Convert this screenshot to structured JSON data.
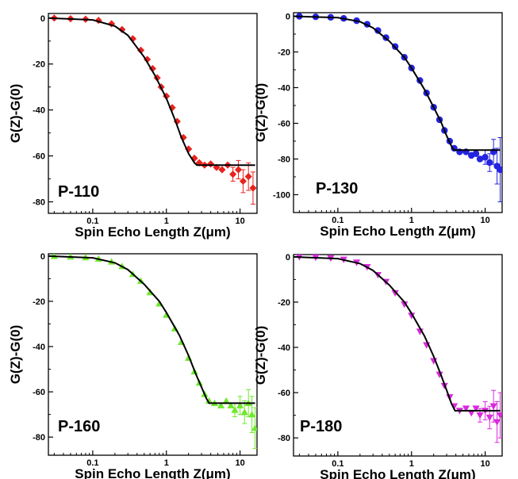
{
  "chart_data": [
    {
      "type": "scatter",
      "panel_label": "P-110",
      "xlabel": "Spin Echo Length Z(μm)",
      "ylabel": "G(Z)-G(0)",
      "x_scale": "log",
      "xlim": [
        0.025,
        17
      ],
      "ylim": [
        -85,
        2
      ],
      "xticks": [
        0.1,
        1,
        10
      ],
      "xtick_labels": [
        "0.1",
        "1",
        "10"
      ],
      "yticks": [
        0,
        -20,
        -40,
        -60,
        -80
      ],
      "ytick_labels": [
        "0",
        "-20",
        "-40",
        "-60",
        "-80"
      ],
      "marker": "diamond",
      "color": "#e8231e",
      "points": [
        {
          "x": 0.03,
          "y": 0.0
        },
        {
          "x": 0.05,
          "y": -0.3
        },
        {
          "x": 0.08,
          "y": -0.5
        },
        {
          "x": 0.12,
          "y": -1
        },
        {
          "x": 0.18,
          "y": -2.5
        },
        {
          "x": 0.25,
          "y": -5
        },
        {
          "x": 0.35,
          "y": -9
        },
        {
          "x": 0.45,
          "y": -14
        },
        {
          "x": 0.55,
          "y": -18
        },
        {
          "x": 0.65,
          "y": -22
        },
        {
          "x": 0.75,
          "y": -26
        },
        {
          "x": 0.85,
          "y": -30
        },
        {
          "x": 1.0,
          "y": -34
        },
        {
          "x": 1.2,
          "y": -39
        },
        {
          "x": 1.4,
          "y": -45
        },
        {
          "x": 1.7,
          "y": -52
        },
        {
          "x": 2.0,
          "y": -57
        },
        {
          "x": 2.4,
          "y": -61
        },
        {
          "x": 2.8,
          "y": -63
        },
        {
          "x": 3.3,
          "y": -64
        },
        {
          "x": 4.0,
          "y": -63.5
        },
        {
          "x": 4.8,
          "y": -65
        },
        {
          "x": 5.7,
          "y": -66
        },
        {
          "x": 6.8,
          "y": -64
        },
        {
          "x": 8.0,
          "y": -68,
          "err": 3
        },
        {
          "x": 9.5,
          "y": -66,
          "err": 4
        },
        {
          "x": 11.0,
          "y": -71,
          "err": 5
        },
        {
          "x": 13.0,
          "y": -69,
          "err": 6
        },
        {
          "x": 15.0,
          "y": -74,
          "err": 7
        }
      ],
      "fit": {
        "color": "#000000",
        "points": [
          {
            "x": 0.025,
            "y": 0
          },
          {
            "x": 0.1,
            "y": -0.8
          },
          {
            "x": 0.2,
            "y": -3.5
          },
          {
            "x": 0.3,
            "y": -7.5
          },
          {
            "x": 0.5,
            "y": -17
          },
          {
            "x": 0.7,
            "y": -25
          },
          {
            "x": 1.0,
            "y": -35
          },
          {
            "x": 1.3,
            "y": -44
          },
          {
            "x": 1.6,
            "y": -52
          },
          {
            "x": 2.0,
            "y": -59
          },
          {
            "x": 2.4,
            "y": -63
          },
          {
            "x": 2.6,
            "y": -64
          },
          {
            "x": 16,
            "y": -64
          }
        ]
      }
    },
    {
      "type": "scatter",
      "panel_label": "P-130",
      "xlabel": "Spin Echo Length Z(μm)",
      "ylabel": "G(Z)-G(0)",
      "x_scale": "log",
      "xlim": [
        0.025,
        17
      ],
      "ylim": [
        -110,
        2
      ],
      "xticks": [
        0.1,
        1,
        10
      ],
      "xtick_labels": [
        "0.1",
        "1",
        "10"
      ],
      "yticks": [
        0,
        -20,
        -40,
        -60,
        -80,
        -100
      ],
      "ytick_labels": [
        "0",
        "-20",
        "-40",
        "-60",
        "-80",
        "-100"
      ],
      "marker": "circle",
      "color": "#2323e0",
      "points": [
        {
          "x": 0.03,
          "y": 0
        },
        {
          "x": 0.05,
          "y": -0.3
        },
        {
          "x": 0.08,
          "y": -0.6
        },
        {
          "x": 0.12,
          "y": -1.2
        },
        {
          "x": 0.18,
          "y": -2.5
        },
        {
          "x": 0.25,
          "y": -4.5
        },
        {
          "x": 0.35,
          "y": -8
        },
        {
          "x": 0.45,
          "y": -12
        },
        {
          "x": 0.6,
          "y": -17
        },
        {
          "x": 0.8,
          "y": -23
        },
        {
          "x": 1.0,
          "y": -29
        },
        {
          "x": 1.3,
          "y": -36
        },
        {
          "x": 1.6,
          "y": -43
        },
        {
          "x": 2.0,
          "y": -51
        },
        {
          "x": 2.4,
          "y": -58
        },
        {
          "x": 2.8,
          "y": -64
        },
        {
          "x": 3.3,
          "y": -70
        },
        {
          "x": 3.8,
          "y": -74
        },
        {
          "x": 4.5,
          "y": -76
        },
        {
          "x": 5.5,
          "y": -76
        },
        {
          "x": 6.5,
          "y": -78
        },
        {
          "x": 7.5,
          "y": -77
        },
        {
          "x": 8.5,
          "y": -80
        },
        {
          "x": 10,
          "y": -79,
          "err": 4
        },
        {
          "x": 11.5,
          "y": -82,
          "err": 5
        },
        {
          "x": 13,
          "y": -76,
          "err": 7
        },
        {
          "x": 14.5,
          "y": -84,
          "err": 10
        },
        {
          "x": 16,
          "y": -86,
          "err": 18
        }
      ],
      "fit": {
        "color": "#000000",
        "points": [
          {
            "x": 0.025,
            "y": 0
          },
          {
            "x": 0.1,
            "y": -0.8
          },
          {
            "x": 0.2,
            "y": -3
          },
          {
            "x": 0.3,
            "y": -6.5
          },
          {
            "x": 0.5,
            "y": -14
          },
          {
            "x": 0.8,
            "y": -23
          },
          {
            "x": 1.0,
            "y": -29
          },
          {
            "x": 1.5,
            "y": -41
          },
          {
            "x": 2.0,
            "y": -51
          },
          {
            "x": 2.5,
            "y": -59
          },
          {
            "x": 3.0,
            "y": -67
          },
          {
            "x": 3.5,
            "y": -73
          },
          {
            "x": 3.8,
            "y": -75
          },
          {
            "x": 16,
            "y": -75
          }
        ]
      }
    },
    {
      "type": "scatter",
      "panel_label": "P-160",
      "xlabel": "Spin Echo Length Z(μm)",
      "ylabel": "G(Z)-G(0)",
      "x_scale": "log",
      "xlim": [
        0.025,
        17
      ],
      "ylim": [
        -88,
        1
      ],
      "xticks": [
        0.1,
        1,
        10
      ],
      "xtick_labels": [
        "0.1",
        "1",
        "10"
      ],
      "yticks": [
        0,
        -20,
        -40,
        -60,
        -80
      ],
      "ytick_labels": [
        "0",
        "-20",
        "-40",
        "-60",
        "-80"
      ],
      "marker": "triangle-up",
      "color": "#6ee82b",
      "points": [
        {
          "x": 0.03,
          "y": 0
        },
        {
          "x": 0.05,
          "y": -0.3
        },
        {
          "x": 0.08,
          "y": -0.6
        },
        {
          "x": 0.12,
          "y": -1.2
        },
        {
          "x": 0.18,
          "y": -2.5
        },
        {
          "x": 0.25,
          "y": -4.5
        },
        {
          "x": 0.35,
          "y": -8
        },
        {
          "x": 0.45,
          "y": -11
        },
        {
          "x": 0.6,
          "y": -16
        },
        {
          "x": 0.8,
          "y": -21
        },
        {
          "x": 1.0,
          "y": -26
        },
        {
          "x": 1.3,
          "y": -32
        },
        {
          "x": 1.6,
          "y": -38
        },
        {
          "x": 2.0,
          "y": -45
        },
        {
          "x": 2.4,
          "y": -51
        },
        {
          "x": 2.8,
          "y": -56
        },
        {
          "x": 3.3,
          "y": -61
        },
        {
          "x": 3.8,
          "y": -64
        },
        {
          "x": 4.5,
          "y": -65
        },
        {
          "x": 5.5,
          "y": -66
        },
        {
          "x": 6.5,
          "y": -64
        },
        {
          "x": 7.5,
          "y": -66
        },
        {
          "x": 8.5,
          "y": -68,
          "err": 3
        },
        {
          "x": 10,
          "y": -66,
          "err": 4
        },
        {
          "x": 11.5,
          "y": -69,
          "err": 5
        },
        {
          "x": 13,
          "y": -65,
          "err": 6
        },
        {
          "x": 14.5,
          "y": -70,
          "err": 8
        },
        {
          "x": 16,
          "y": -76,
          "err": 9
        }
      ],
      "fit": {
        "color": "#000000",
        "points": [
          {
            "x": 0.025,
            "y": 0
          },
          {
            "x": 0.1,
            "y": -0.8
          },
          {
            "x": 0.2,
            "y": -3
          },
          {
            "x": 0.3,
            "y": -6
          },
          {
            "x": 0.5,
            "y": -12.5
          },
          {
            "x": 0.8,
            "y": -20
          },
          {
            "x": 1.0,
            "y": -25
          },
          {
            "x": 1.5,
            "y": -35
          },
          {
            "x": 2.0,
            "y": -44
          },
          {
            "x": 2.5,
            "y": -52
          },
          {
            "x": 3.0,
            "y": -58
          },
          {
            "x": 3.5,
            "y": -63
          },
          {
            "x": 3.8,
            "y": -65
          },
          {
            "x": 16,
            "y": -65
          }
        ]
      }
    },
    {
      "type": "scatter",
      "panel_label": "P-180",
      "xlabel": "Spin Echo Length Z(μm)",
      "ylabel": "G(Z)-G(0)",
      "x_scale": "log",
      "xlim": [
        0.025,
        17
      ],
      "ylim": [
        -88,
        1
      ],
      "xticks": [
        0.1,
        1,
        10
      ],
      "xtick_labels": [
        "0.1",
        "1",
        "10"
      ],
      "yticks": [
        0,
        -20,
        -40,
        -60,
        -80
      ],
      "ytick_labels": [
        "0",
        "-20",
        "-40",
        "-60",
        "-80"
      ],
      "marker": "triangle-down",
      "color": "#d82bdc",
      "points": [
        {
          "x": 0.03,
          "y": 0
        },
        {
          "x": 0.05,
          "y": -0.3
        },
        {
          "x": 0.08,
          "y": -0.6
        },
        {
          "x": 0.12,
          "y": -1.2
        },
        {
          "x": 0.18,
          "y": -2.5
        },
        {
          "x": 0.25,
          "y": -4.5
        },
        {
          "x": 0.35,
          "y": -8
        },
        {
          "x": 0.45,
          "y": -11
        },
        {
          "x": 0.6,
          "y": -16
        },
        {
          "x": 0.8,
          "y": -21
        },
        {
          "x": 1.0,
          "y": -26
        },
        {
          "x": 1.3,
          "y": -33
        },
        {
          "x": 1.6,
          "y": -39
        },
        {
          "x": 2.0,
          "y": -46
        },
        {
          "x": 2.4,
          "y": -52
        },
        {
          "x": 2.8,
          "y": -57
        },
        {
          "x": 3.3,
          "y": -62
        },
        {
          "x": 3.8,
          "y": -66
        },
        {
          "x": 4.5,
          "y": -68
        },
        {
          "x": 5.5,
          "y": -67
        },
        {
          "x": 6.5,
          "y": -69
        },
        {
          "x": 7.5,
          "y": -67
        },
        {
          "x": 8.5,
          "y": -70,
          "err": 3
        },
        {
          "x": 10,
          "y": -68,
          "err": 4
        },
        {
          "x": 11.5,
          "y": -71,
          "err": 5
        },
        {
          "x": 13,
          "y": -66,
          "err": 7
        },
        {
          "x": 14.5,
          "y": -73,
          "err": 9
        },
        {
          "x": 16,
          "y": -70,
          "err": 10
        }
      ],
      "fit": {
        "color": "#000000",
        "points": [
          {
            "x": 0.025,
            "y": 0
          },
          {
            "x": 0.1,
            "y": -0.8
          },
          {
            "x": 0.2,
            "y": -3
          },
          {
            "x": 0.3,
            "y": -6
          },
          {
            "x": 0.5,
            "y": -12.5
          },
          {
            "x": 0.8,
            "y": -20
          },
          {
            "x": 1.0,
            "y": -25
          },
          {
            "x": 1.5,
            "y": -35
          },
          {
            "x": 2.0,
            "y": -44
          },
          {
            "x": 2.5,
            "y": -52
          },
          {
            "x": 3.0,
            "y": -59
          },
          {
            "x": 3.5,
            "y": -65
          },
          {
            "x": 3.9,
            "y": -68
          },
          {
            "x": 16,
            "y": -68
          }
        ]
      }
    }
  ]
}
